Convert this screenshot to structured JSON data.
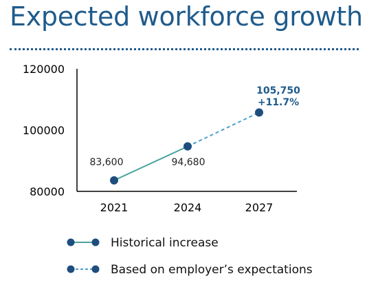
{
  "title": "Expected workforce growth",
  "colors": {
    "title": "#1f5b8c",
    "marker": "#1d4e7e",
    "historical_line": "#4aa3a0",
    "expected_line": "#4a9fd0",
    "axis": "#000000"
  },
  "chart_data": {
    "type": "line",
    "title": "",
    "xlabel": "",
    "ylabel": "",
    "categories": [
      "2021",
      "2024",
      "2027"
    ],
    "ylim": [
      80000,
      120000
    ],
    "yticks": [
      "120000",
      "100000",
      "80000"
    ],
    "grid": false,
    "legend_position": "bottom",
    "series": [
      {
        "name": "Historical increase",
        "style": "solid",
        "x": [
          "2021",
          "2024"
        ],
        "values": [
          83600,
          94680
        ],
        "labels": [
          "83,600",
          "94,680"
        ]
      },
      {
        "name": "Based on employer’s expectations",
        "style": "dashed",
        "x": [
          "2024",
          "2027"
        ],
        "values": [
          94680,
          105750
        ],
        "labels": [
          "",
          "105,750"
        ]
      }
    ],
    "annotations": [
      {
        "x": "2027",
        "text": "105,750"
      },
      {
        "x": "2027",
        "text": "+11.7%"
      }
    ]
  }
}
